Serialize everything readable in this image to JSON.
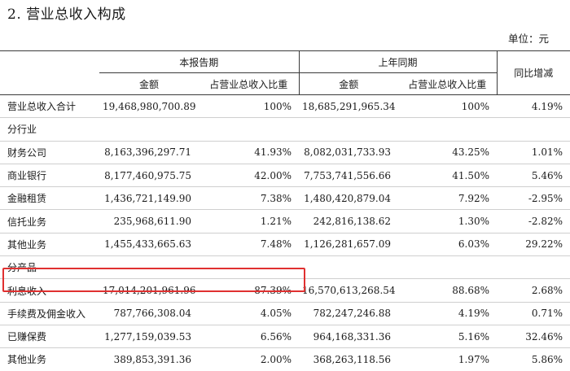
{
  "heading": "2. 营业总收入构成",
  "unit": "单位：元",
  "header": {
    "current_period": "本报告期",
    "prior_period": "上年同期",
    "yoy": "同比增减",
    "amount": "金额",
    "share": "占营业总收入比重"
  },
  "highlight_color": "#e03030",
  "rows": [
    {
      "label": "营业总收入合计",
      "cur_amount": "19,468,980,700.89",
      "cur_share": "100%",
      "prev_amount": "18,685,291,965.34",
      "prev_share": "100%",
      "yoy": "4.19%"
    },
    {
      "label": "分行业",
      "cur_amount": "",
      "cur_share": "",
      "prev_amount": "",
      "prev_share": "",
      "yoy": ""
    },
    {
      "label": "财务公司",
      "cur_amount": "8,163,396,297.71",
      "cur_share": "41.93%",
      "prev_amount": "8,082,031,733.93",
      "prev_share": "43.25%",
      "yoy": "1.01%"
    },
    {
      "label": "商业银行",
      "cur_amount": "8,177,460,975.75",
      "cur_share": "42.00%",
      "prev_amount": "7,753,741,556.66",
      "prev_share": "41.50%",
      "yoy": "5.46%"
    },
    {
      "label": "金融租赁",
      "cur_amount": "1,436,721,149.90",
      "cur_share": "7.38%",
      "prev_amount": "1,480,420,879.04",
      "prev_share": "7.92%",
      "yoy": "-2.95%"
    },
    {
      "label": "信托业务",
      "cur_amount": "235,968,611.90",
      "cur_share": "1.21%",
      "prev_amount": "242,816,138.62",
      "prev_share": "1.30%",
      "yoy": "-2.82%"
    },
    {
      "label": "其他业务",
      "cur_amount": "1,455,433,665.63",
      "cur_share": "7.48%",
      "prev_amount": "1,126,281,657.09",
      "prev_share": "6.03%",
      "yoy": "29.22%"
    },
    {
      "label": "分产品",
      "cur_amount": "",
      "cur_share": "",
      "prev_amount": "",
      "prev_share": "",
      "yoy": ""
    },
    {
      "label": "利息收入",
      "cur_amount": "17,014,201,961.96",
      "cur_share": "87.39%",
      "prev_amount": "16,570,613,268.54",
      "prev_share": "88.68%",
      "yoy": "2.68%"
    },
    {
      "label": "手续费及佣金收入",
      "cur_amount": "787,766,308.04",
      "cur_share": "4.05%",
      "prev_amount": "782,247,246.88",
      "prev_share": "4.19%",
      "yoy": "0.71%"
    },
    {
      "label": "已赚保费",
      "cur_amount": "1,277,159,039.53",
      "cur_share": "6.56%",
      "prev_amount": "964,168,331.36",
      "prev_share": "5.16%",
      "yoy": "32.46%"
    },
    {
      "label": "其他业务",
      "cur_amount": "389,853,391.36",
      "cur_share": "2.00%",
      "prev_amount": "368,263,118.56",
      "prev_share": "1.97%",
      "yoy": "5.86%"
    }
  ]
}
